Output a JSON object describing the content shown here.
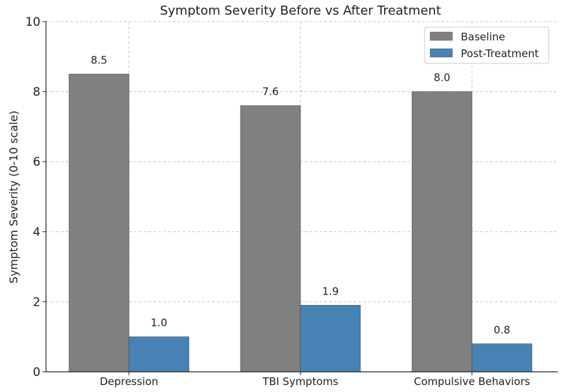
{
  "chart_data": {
    "type": "bar",
    "title": "Symptom Severity Before vs After Treatment",
    "xlabel": "",
    "ylabel": "Symptom Severity (0-10 scale)",
    "ylim": [
      0,
      10
    ],
    "yticks": [
      0,
      2,
      4,
      6,
      8,
      10
    ],
    "categories": [
      "Depression",
      "TBI Symptoms",
      "Compulsive Behaviors"
    ],
    "series": [
      {
        "name": "Baseline",
        "values": [
          8.5,
          7.6,
          8.0
        ],
        "labels": [
          "8.5",
          "7.6",
          "8.0"
        ],
        "color": "#808080"
      },
      {
        "name": "Post-Treatment",
        "values": [
          1.0,
          1.9,
          0.8
        ],
        "labels": [
          "1.0",
          "1.9",
          "0.8"
        ],
        "color": "#4682b4"
      }
    ],
    "grid": true,
    "legend_position": "top-right"
  }
}
